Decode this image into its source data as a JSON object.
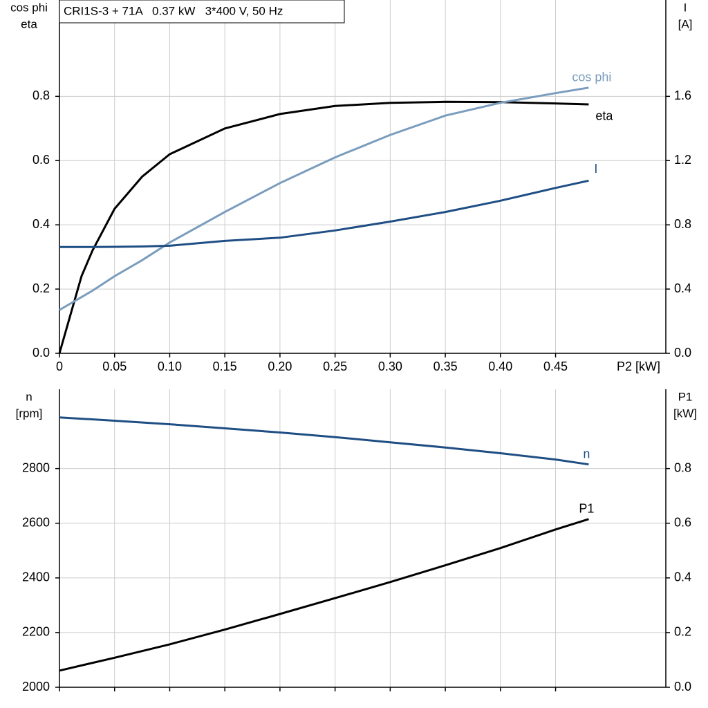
{
  "chart_data": [
    {
      "type": "line",
      "title": "CRI1S-3 + 71A   0.37 kW   3*400 V, 50 Hz",
      "y_label": [
        "cos phi",
        "eta"
      ],
      "y2_label": [
        "I",
        "[A]"
      ],
      "x_label": "P2 [kW]",
      "xlim": [
        0,
        0.55
      ],
      "xticks": [
        0,
        0.05,
        {
          "value": 0.1,
          "label": "0.10"
        },
        0.15,
        {
          "value": 0.2,
          "label": "0.20"
        },
        0.25,
        {
          "value": 0.3,
          "label": "0.30"
        },
        0.35,
        {
          "value": 0.4,
          "label": "0.40"
        },
        0.45
      ],
      "ylim": [
        0,
        1.1
      ],
      "yticks": [
        {
          "value": 0,
          "label": "0.0"
        },
        0.2,
        0.4,
        0.6,
        0.8
      ],
      "y2lim": [
        0,
        2.2
      ],
      "y2ticks": [
        {
          "value": 0,
          "label": "0.0"
        },
        0.4,
        0.8,
        1.2,
        1.6
      ],
      "grid": true,
      "x": [
        0,
        0.01,
        0.02,
        0.03,
        0.05,
        0.075,
        0.1,
        0.15,
        0.2,
        0.25,
        0.3,
        0.35,
        0.4,
        0.45,
        0.48
      ],
      "series": [
        {
          "name": "eta",
          "color": "#000000",
          "values": [
            0,
            0.12,
            0.24,
            0.32,
            0.45,
            0.55,
            0.62,
            0.7,
            0.745,
            0.77,
            0.78,
            0.783,
            0.782,
            0.778,
            0.775
          ]
        },
        {
          "name": "cos phi",
          "color": "#7a9cbd",
          "values": [
            0.135,
            0.155,
            0.175,
            0.195,
            0.24,
            0.29,
            0.345,
            0.44,
            0.53,
            0.61,
            0.68,
            0.74,
            0.78,
            0.81,
            0.827
          ]
        },
        {
          "name": "I",
          "color": "#1f4e84",
          "axis": "y2",
          "values": [
            0.662,
            0.662,
            0.662,
            0.662,
            0.663,
            0.665,
            0.67,
            0.7,
            0.72,
            0.765,
            0.82,
            0.88,
            0.95,
            1.03,
            1.075
          ]
        }
      ]
    },
    {
      "type": "line",
      "y_label": [
        "n",
        "[rpm]"
      ],
      "y2_label": [
        "P1",
        "[kW]"
      ],
      "xlim": [
        0,
        0.55
      ],
      "ylim": [
        2000,
        3090
      ],
      "yticks": [
        2000,
        2200,
        2400,
        2600,
        2800
      ],
      "y2lim": [
        0,
        1.09
      ],
      "y2ticks": [
        {
          "value": 0,
          "label": "0.0"
        },
        0.2,
        0.4,
        0.6,
        0.8
      ],
      "grid": true,
      "x": [
        0,
        0.05,
        0.1,
        0.15,
        0.2,
        0.25,
        0.3,
        0.35,
        0.4,
        0.45,
        0.48
      ],
      "series": [
        {
          "name": "n",
          "color": "#1f4e84",
          "values": [
            2987,
            2975,
            2962,
            2947,
            2932,
            2915,
            2896,
            2877,
            2856,
            2833,
            2815
          ]
        },
        {
          "name": "P1",
          "color": "#000000",
          "axis": "y2",
          "values": [
            0.061,
            0.108,
            0.157,
            0.211,
            0.268,
            0.326,
            0.385,
            0.446,
            0.509,
            0.577,
            0.615
          ]
        }
      ]
    }
  ]
}
